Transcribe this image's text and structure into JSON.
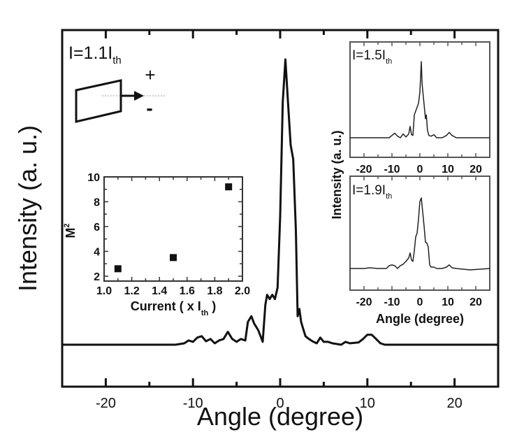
{
  "figure": {
    "main": {
      "annotation": "I=1.1I",
      "annotation_sub": "th",
      "xlabel": "Angle (degree)",
      "ylabel": "Intensity (a. u.)",
      "xticks": [
        -20,
        -10,
        0,
        10,
        20
      ],
      "schematic": {
        "plus": "+",
        "minus": "-"
      }
    },
    "m2_inset": {
      "xlabel": "Current ( x I",
      "xlabel_sub": "th",
      "xlabel_end": " )",
      "ylabel": "M",
      "ylabel_sup": "2",
      "xticks": [
        "1.0",
        "1.2",
        "1.4",
        "1.6",
        "1.8",
        "2.0"
      ],
      "yticks": [
        "2",
        "4",
        "6",
        "8",
        "10"
      ]
    },
    "inset_top": {
      "annotation": "I=1.5I",
      "annotation_sub": "th",
      "xticks": [
        "-20",
        "-10",
        "0",
        "10",
        "20"
      ]
    },
    "inset_bottom": {
      "annotation": "I=1.9I",
      "annotation_sub": "th",
      "xticks": [
        "-20",
        "-10",
        "0",
        "10",
        "20"
      ]
    },
    "insets_shared": {
      "xlabel": "Angle (degree)",
      "ylabel": "Intensity (a. u.)"
    }
  },
  "chart_data": [
    {
      "type": "line",
      "title": "Far-field profile at I=1.1 Ith",
      "xlabel": "Angle (degree)",
      "ylabel": "Intensity (a. u.)",
      "xlim": [
        -25,
        25
      ],
      "ylim": [
        -0.08,
        1.08
      ],
      "grid": false,
      "series": [
        {
          "name": "I=1.1Ith",
          "x": [
            -25,
            -12,
            -11,
            -10.5,
            -10,
            -9.5,
            -9,
            -8.5,
            -8,
            -7.5,
            -7,
            -6.5,
            -6,
            -5.5,
            -5,
            -4.5,
            -4,
            -3.7,
            -3.3,
            -3,
            -2.5,
            -2,
            -1.7,
            -1.5,
            -1.2,
            -0.9,
            -0.6,
            -0.3,
            0,
            0.3,
            0.6,
            0.9,
            1.2,
            1.5,
            1.8,
            2.0,
            2.2,
            2.4,
            2.6,
            2.9,
            3.3,
            3.7,
            4.2,
            4.6,
            5.0,
            5.5,
            6,
            7,
            7.5,
            8,
            9,
            9.5,
            10,
            10.5,
            11,
            11.5,
            12,
            13,
            15,
            20,
            25
          ],
          "y": [
            0,
            0,
            0.005,
            0.015,
            0.01,
            0.025,
            0.03,
            0.012,
            0.02,
            0.005,
            0.015,
            0.02,
            0.045,
            0.02,
            0.01,
            0.02,
            0.015,
            0.08,
            0.1,
            0.075,
            0.05,
            0.01,
            0.14,
            0.175,
            0.16,
            0.175,
            0.16,
            0.2,
            0.45,
            0.85,
            1.0,
            0.85,
            0.7,
            0.65,
            0.4,
            0.1,
            0.125,
            0.08,
            0.06,
            0.03,
            0.02,
            0.012,
            0.005,
            0.025,
            0.01,
            0.01,
            0.005,
            0.0,
            0.01,
            0.005,
            0.008,
            0.02,
            0.035,
            0.035,
            0.02,
            0.005,
            0.0,
            0.0,
            0.0,
            0.0,
            0.0
          ]
        }
      ]
    },
    {
      "type": "scatter",
      "title": "M2 vs current",
      "xlabel": "Current ( x Ith )",
      "ylabel": "M2",
      "xlim": [
        1.0,
        2.0
      ],
      "ylim": [
        1.5,
        10
      ],
      "grid": false,
      "series": [
        {
          "name": "M2",
          "x": [
            1.1,
            1.5,
            1.9
          ],
          "y": [
            2.6,
            3.5,
            9.2
          ]
        }
      ]
    },
    {
      "type": "line",
      "title": "I=1.5Ith",
      "xlabel": "Angle (degree)",
      "ylabel": "Intensity (a. u.)",
      "xlim": [
        -25,
        25
      ],
      "ylim": [
        -0.6,
        1.1
      ],
      "grid": false,
      "series": [
        {
          "name": "I=1.5Ith",
          "x": [
            -25,
            -11,
            -10,
            -9,
            -8,
            -7,
            -6,
            -5,
            -4,
            -3.5,
            -3,
            -2.5,
            -2,
            -1.5,
            -1,
            -0.5,
            0,
            0.5,
            0.8,
            1.2,
            1.6,
            2.0,
            2.3,
            2.7,
            3.2,
            4,
            5,
            6,
            8,
            9.5,
            10.5,
            11.5,
            13,
            25
          ],
          "y": [
            0,
            0,
            0.03,
            0.06,
            0.02,
            0.0,
            0.05,
            0.01,
            0.05,
            0.15,
            0.04,
            0.03,
            0.3,
            0.35,
            0.4,
            0.45,
            0.6,
            1.0,
            0.7,
            0.55,
            0.4,
            0.25,
            0.3,
            0.1,
            0.03,
            0.02,
            0.04,
            0.0,
            0.0,
            0.03,
            0.07,
            0.03,
            0.0,
            0
          ]
        }
      ]
    },
    {
      "type": "line",
      "title": "I=1.9Ith",
      "xlabel": "Angle (degree)",
      "ylabel": "Intensity (a. u.)",
      "xlim": [
        -25,
        25
      ],
      "ylim": [
        -0.45,
        1.15
      ],
      "grid": false,
      "series": [
        {
          "name": "I=1.9Ith",
          "x": [
            -25,
            -20,
            -18,
            -15,
            -12,
            -11,
            -10,
            -9,
            -8,
            -7,
            -6,
            -5,
            -4,
            -3.5,
            -3,
            -2.5,
            -2,
            -1.5,
            -1,
            -0.5,
            0,
            0.5,
            1,
            1.5,
            2,
            2.5,
            3,
            3.5,
            4,
            5,
            6,
            8,
            9.5,
            10.5,
            11.5,
            13,
            18,
            25
          ],
          "y": [
            0,
            0.0,
            0.01,
            0.0,
            0.0,
            0.04,
            0.05,
            0.04,
            0.0,
            0.04,
            0.06,
            0.1,
            0.15,
            0.22,
            0.12,
            0.1,
            0.25,
            0.45,
            0.5,
            0.7,
            0.95,
            1.0,
            0.8,
            0.6,
            0.37,
            0.36,
            0.3,
            0.05,
            0.02,
            0.02,
            0.0,
            0.0,
            0.02,
            0.05,
            0.01,
            0.0,
            -0.02,
            0.0
          ]
        }
      ]
    }
  ]
}
